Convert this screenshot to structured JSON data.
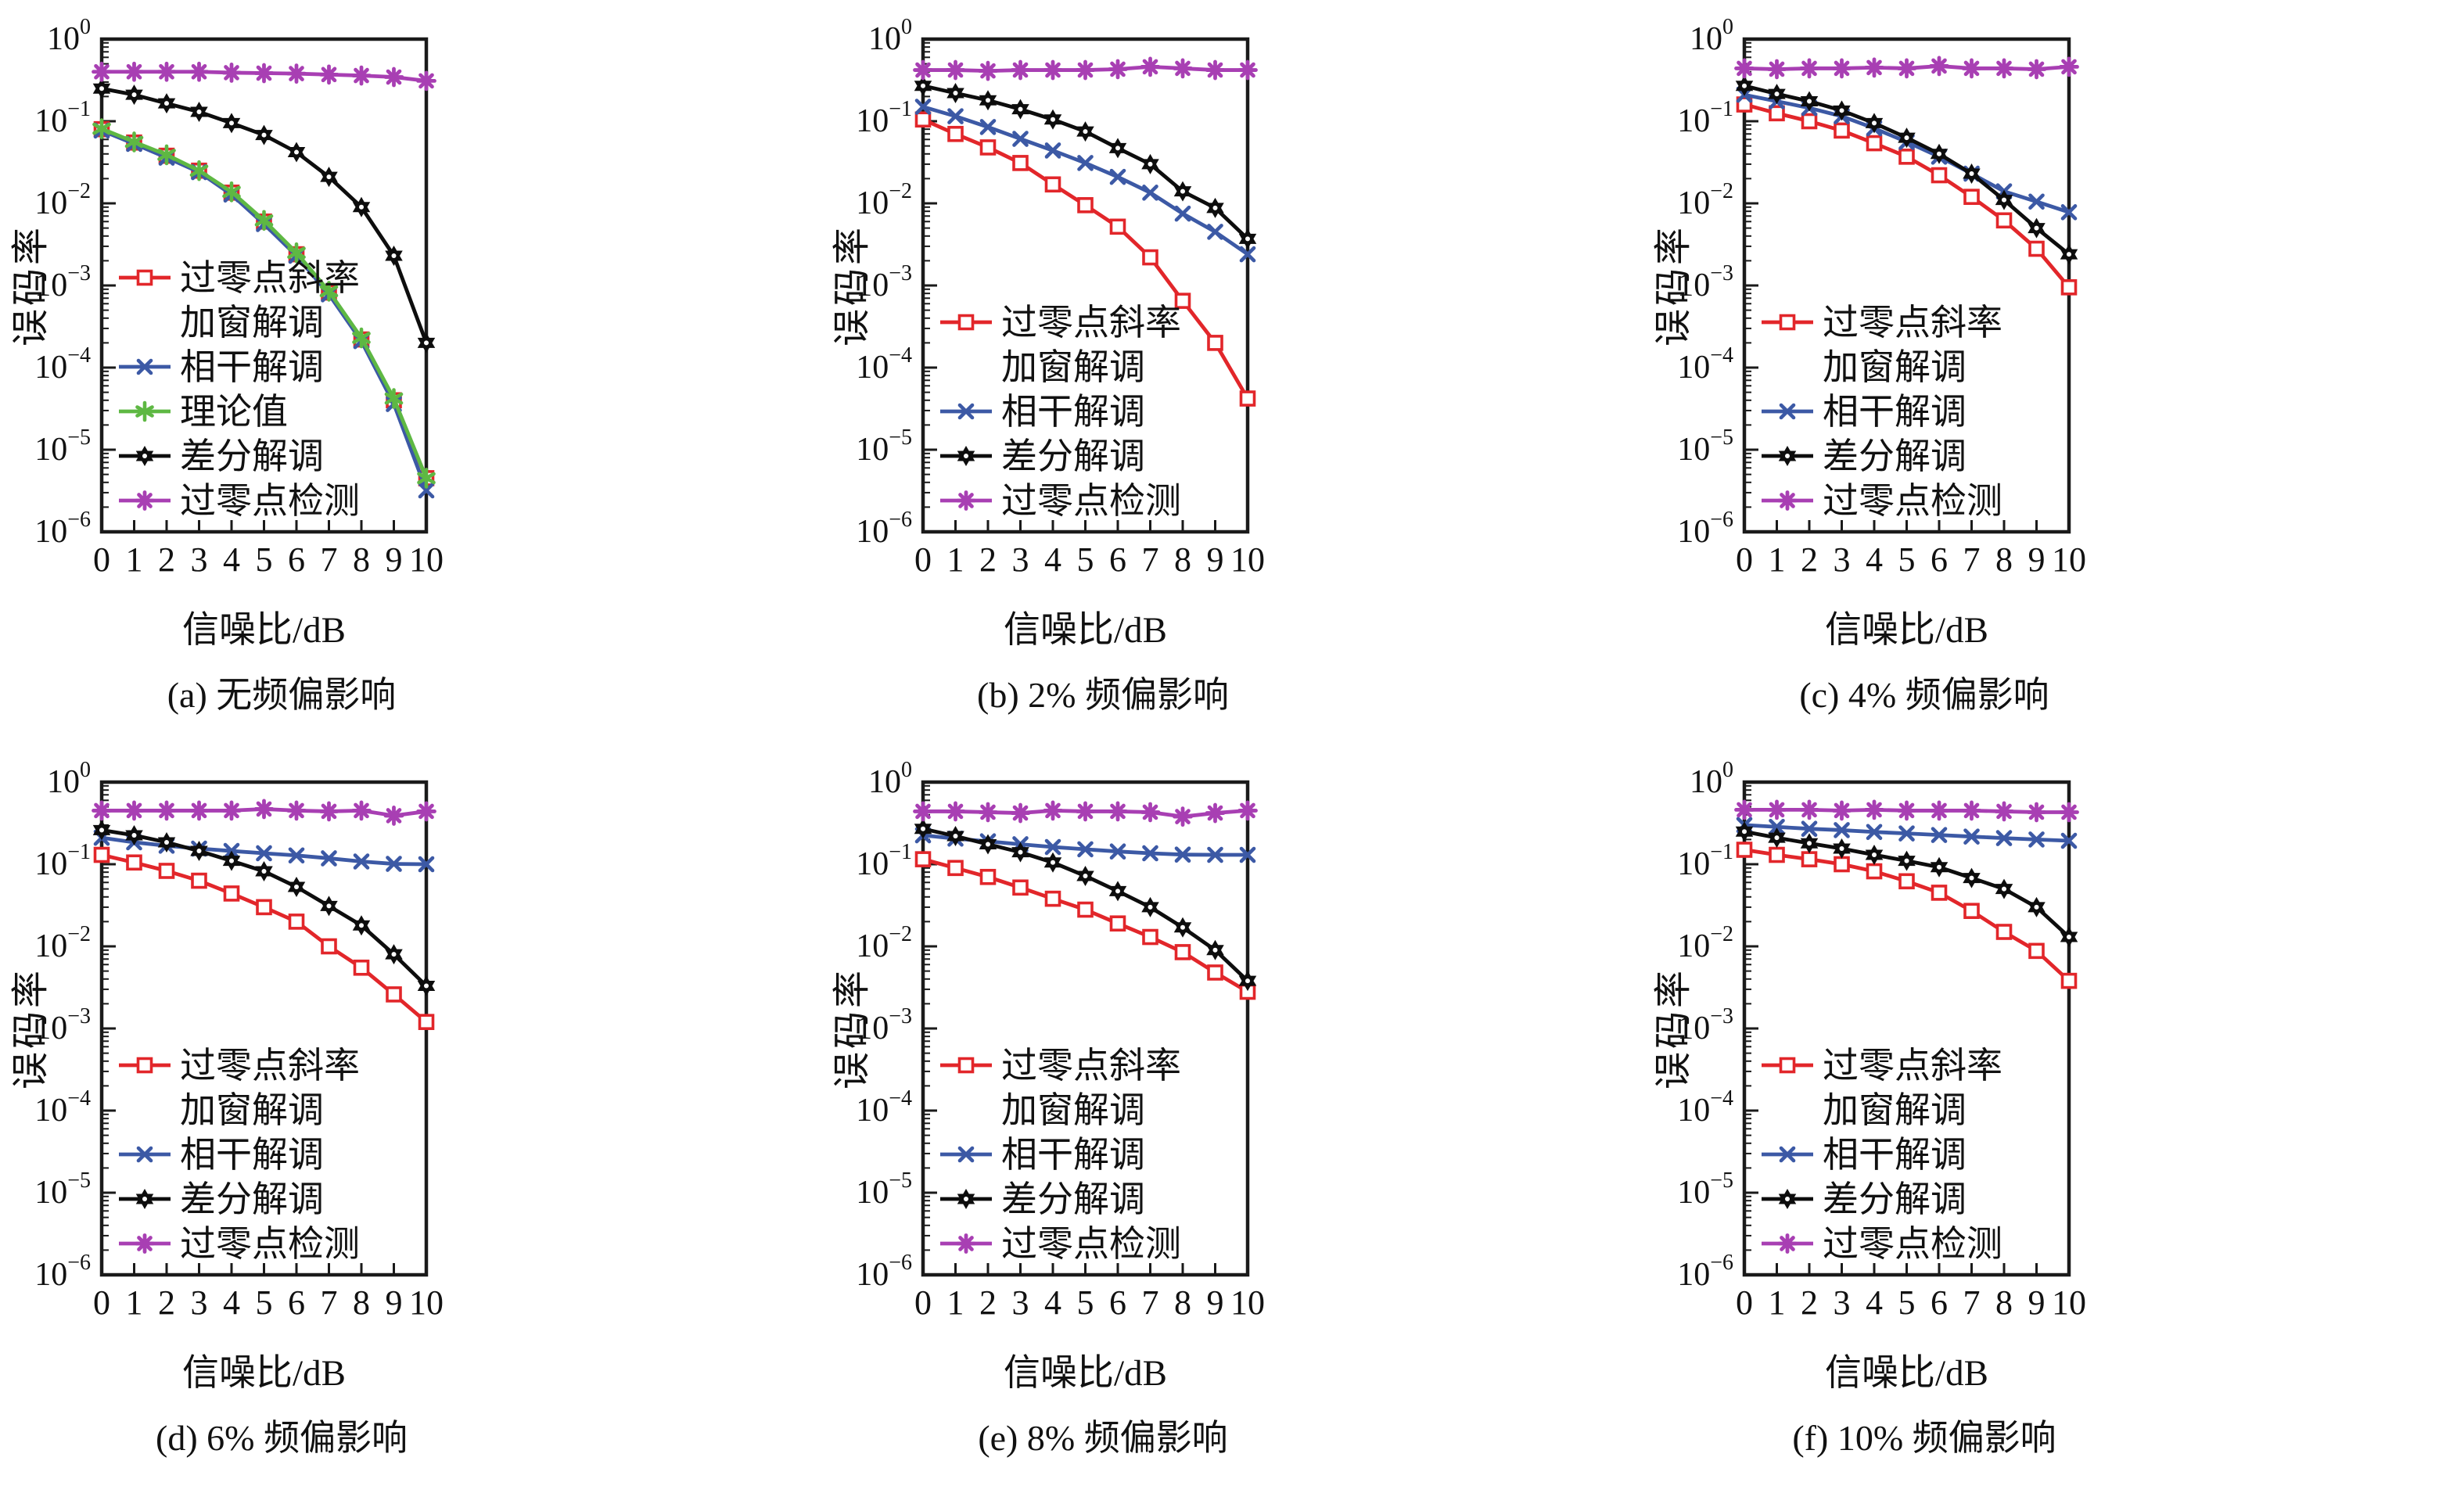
{
  "figure": {
    "xlabel": "信噪比/dB",
    "ylabel": "误码率"
  },
  "chart_data": [
    {
      "id": "a",
      "type": "line",
      "caption": "(a) 无频偏影响",
      "xlabel": "信噪比/dB",
      "ylabel": "误码率",
      "x": [
        0,
        1,
        2,
        3,
        4,
        5,
        6,
        7,
        8,
        9,
        10
      ],
      "xticks": [
        "0",
        "1",
        "2",
        "3",
        "4",
        "5",
        "6",
        "7",
        "8",
        "9",
        "10"
      ],
      "ytick_exponents": [
        0,
        -1,
        -2,
        -3,
        -4,
        -5,
        -6
      ],
      "xlim": [
        0,
        10
      ],
      "ylog_lim": [
        1,
        1e-06
      ],
      "grid": false,
      "legend_position": "lower-left-inside",
      "series": [
        {
          "name": "过零点斜率加窗解调",
          "legend_lines": [
            "过零点斜率",
            "加窗解调"
          ],
          "color": "#e2262a",
          "marker": "open-square",
          "values": [
            0.08,
            0.055,
            0.038,
            0.025,
            0.0135,
            0.006,
            0.0024,
            0.00082,
            0.00022,
            4e-05,
            4.5e-06
          ]
        },
        {
          "name": "相干解调",
          "legend_lines": [
            "相干解调"
          ],
          "color": "#3c59a5",
          "marker": "x-cross",
          "values": [
            0.077,
            0.053,
            0.036,
            0.024,
            0.0128,
            0.0056,
            0.0023,
            0.00078,
            0.00021,
            3.6e-05,
            3.2e-06
          ]
        },
        {
          "name": "理论值",
          "legend_lines": [
            "理论值"
          ],
          "color": "#5eb843",
          "marker": "asterisk-6",
          "values": [
            0.081,
            0.056,
            0.039,
            0.025,
            0.0138,
            0.0062,
            0.0025,
            0.00085,
            0.00023,
            4.2e-05,
            4.5e-06
          ]
        },
        {
          "name": "差分解调",
          "legend_lines": [
            "差分解调"
          ],
          "color": "#0d0d0d",
          "marker": "hexagram-star",
          "values": [
            0.25,
            0.21,
            0.165,
            0.13,
            0.095,
            0.068,
            0.042,
            0.021,
            0.009,
            0.0023,
            0.0002
          ]
        },
        {
          "name": "过零点检测",
          "legend_lines": [
            "过零点检测"
          ],
          "color": "#a83fb3",
          "marker": "asterisk-8",
          "values": [
            0.4,
            0.4,
            0.4,
            0.4,
            0.39,
            0.385,
            0.38,
            0.37,
            0.36,
            0.345,
            0.31
          ]
        }
      ]
    },
    {
      "id": "b",
      "type": "line",
      "caption": "(b) 2% 频偏影响",
      "xlabel": "信噪比/dB",
      "ylabel": "误码率",
      "x": [
        0,
        1,
        2,
        3,
        4,
        5,
        6,
        7,
        8,
        9,
        10
      ],
      "xticks": [
        "0",
        "1",
        "2",
        "3",
        "4",
        "5",
        "6",
        "7",
        "8",
        "9",
        "10"
      ],
      "ytick_exponents": [
        0,
        -1,
        -2,
        -3,
        -4,
        -5,
        -6
      ],
      "xlim": [
        0,
        10
      ],
      "ylog_lim": [
        1,
        1e-06
      ],
      "grid": false,
      "legend_position": "lower-left-inside",
      "series": [
        {
          "name": "过零点斜率加窗解调",
          "legend_lines": [
            "过零点斜率",
            "加窗解调"
          ],
          "color": "#e2262a",
          "marker": "open-square",
          "values": [
            0.105,
            0.07,
            0.048,
            0.031,
            0.017,
            0.0095,
            0.0052,
            0.0022,
            0.00065,
            0.0002,
            4.2e-05
          ]
        },
        {
          "name": "相干解调",
          "legend_lines": [
            "相干解调"
          ],
          "color": "#3c59a5",
          "marker": "x-cross",
          "values": [
            0.15,
            0.115,
            0.085,
            0.061,
            0.044,
            0.031,
            0.021,
            0.0135,
            0.0075,
            0.0045,
            0.0024
          ]
        },
        {
          "name": "差分解调",
          "legend_lines": [
            "差分解调"
          ],
          "color": "#0d0d0d",
          "marker": "hexagram-star",
          "values": [
            0.27,
            0.22,
            0.18,
            0.14,
            0.105,
            0.075,
            0.047,
            0.03,
            0.014,
            0.0088,
            0.0037
          ]
        },
        {
          "name": "过零点检测",
          "legend_lines": [
            "过零点检测"
          ],
          "color": "#a83fb3",
          "marker": "asterisk-8",
          "values": [
            0.42,
            0.42,
            0.41,
            0.42,
            0.42,
            0.42,
            0.43,
            0.46,
            0.44,
            0.42,
            0.42
          ]
        }
      ]
    },
    {
      "id": "c",
      "type": "line",
      "caption": "(c) 4% 频偏影响",
      "xlabel": "信噪比/dB",
      "ylabel": "误码率",
      "x": [
        0,
        1,
        2,
        3,
        4,
        5,
        6,
        7,
        8,
        9,
        10
      ],
      "xticks": [
        "0",
        "1",
        "2",
        "3",
        "4",
        "5",
        "6",
        "7",
        "8",
        "9",
        "10"
      ],
      "ytick_exponents": [
        0,
        -1,
        -2,
        -3,
        -4,
        -5,
        -6
      ],
      "xlim": [
        0,
        10
      ],
      "ylog_lim": [
        1,
        1e-06
      ],
      "grid": false,
      "legend_position": "lower-left-inside",
      "series": [
        {
          "name": "过零点斜率加窗解调",
          "legend_lines": [
            "过零点斜率",
            "加窗解调"
          ],
          "color": "#e2262a",
          "marker": "open-square",
          "values": [
            0.16,
            0.125,
            0.1,
            0.077,
            0.054,
            0.037,
            0.022,
            0.012,
            0.0062,
            0.0028,
            0.00095
          ]
        },
        {
          "name": "相干解调",
          "legend_lines": [
            "相干解调"
          ],
          "color": "#3c59a5",
          "marker": "x-cross",
          "values": [
            0.21,
            0.175,
            0.145,
            0.115,
            0.082,
            0.056,
            0.037,
            0.023,
            0.014,
            0.0105,
            0.0078
          ]
        },
        {
          "name": "差分解调",
          "legend_lines": [
            "差分解调"
          ],
          "color": "#0d0d0d",
          "marker": "hexagram-star",
          "values": [
            0.27,
            0.215,
            0.175,
            0.135,
            0.095,
            0.063,
            0.04,
            0.023,
            0.011,
            0.005,
            0.0024
          ]
        },
        {
          "name": "过零点检测",
          "legend_lines": [
            "过零点检测"
          ],
          "color": "#a83fb3",
          "marker": "asterisk-8",
          "values": [
            0.44,
            0.43,
            0.44,
            0.44,
            0.45,
            0.44,
            0.47,
            0.44,
            0.44,
            0.43,
            0.46
          ]
        }
      ]
    },
    {
      "id": "d",
      "type": "line",
      "caption": "(d) 6% 频偏影响",
      "xlabel": "信噪比/dB",
      "ylabel": "误码率",
      "x": [
        0,
        1,
        2,
        3,
        4,
        5,
        6,
        7,
        8,
        9,
        10
      ],
      "xticks": [
        "0",
        "1",
        "2",
        "3",
        "4",
        "5",
        "6",
        "7",
        "8",
        "9",
        "10"
      ],
      "ytick_exponents": [
        0,
        -1,
        -2,
        -3,
        -4,
        -5,
        -6
      ],
      "xlim": [
        0,
        10
      ],
      "ylog_lim": [
        1,
        1e-06
      ],
      "grid": false,
      "legend_position": "lower-left-inside",
      "series": [
        {
          "name": "过零点斜率加窗解调",
          "legend_lines": [
            "过零点斜率",
            "加窗解调"
          ],
          "color": "#e2262a",
          "marker": "open-square",
          "values": [
            0.13,
            0.105,
            0.083,
            0.063,
            0.044,
            0.03,
            0.02,
            0.01,
            0.0055,
            0.0026,
            0.0012
          ]
        },
        {
          "name": "相干解调",
          "legend_lines": [
            "相干解调"
          ],
          "color": "#3c59a5",
          "marker": "x-cross",
          "values": [
            0.21,
            0.185,
            0.168,
            0.155,
            0.145,
            0.136,
            0.128,
            0.118,
            0.108,
            0.101,
            0.1
          ]
        },
        {
          "name": "差分解调",
          "legend_lines": [
            "差分解调"
          ],
          "color": "#0d0d0d",
          "marker": "hexagram-star",
          "values": [
            0.26,
            0.225,
            0.185,
            0.145,
            0.11,
            0.082,
            0.053,
            0.031,
            0.018,
            0.008,
            0.0033
          ]
        },
        {
          "name": "过零点检测",
          "legend_lines": [
            "过零点检测"
          ],
          "color": "#a83fb3",
          "marker": "asterisk-8",
          "values": [
            0.45,
            0.45,
            0.45,
            0.45,
            0.45,
            0.47,
            0.45,
            0.44,
            0.45,
            0.39,
            0.44
          ]
        }
      ]
    },
    {
      "id": "e",
      "type": "line",
      "caption": "(e) 8% 频偏影响",
      "xlabel": "信噪比/dB",
      "ylabel": "误码率",
      "x": [
        0,
        1,
        2,
        3,
        4,
        5,
        6,
        7,
        8,
        9,
        10
      ],
      "xticks": [
        "0",
        "1",
        "2",
        "3",
        "4",
        "5",
        "6",
        "7",
        "8",
        "9",
        "10"
      ],
      "ytick_exponents": [
        0,
        -1,
        -2,
        -3,
        -4,
        -5,
        -6
      ],
      "xlim": [
        0,
        10
      ],
      "ylog_lim": [
        1,
        1e-06
      ],
      "grid": false,
      "legend_position": "lower-left-inside",
      "series": [
        {
          "name": "过零点斜率加窗解调",
          "legend_lines": [
            "过零点斜率",
            "加窗解调"
          ],
          "color": "#e2262a",
          "marker": "open-square",
          "values": [
            0.115,
            0.09,
            0.07,
            0.052,
            0.038,
            0.028,
            0.019,
            0.013,
            0.0085,
            0.0048,
            0.0028
          ]
        },
        {
          "name": "相干解调",
          "legend_lines": [
            "相干解调"
          ],
          "color": "#3c59a5",
          "marker": "x-cross",
          "values": [
            0.225,
            0.205,
            0.19,
            0.175,
            0.162,
            0.152,
            0.143,
            0.136,
            0.131,
            0.13,
            0.13
          ]
        },
        {
          "name": "差分解调",
          "legend_lines": [
            "差分解调"
          ],
          "color": "#0d0d0d",
          "marker": "hexagram-star",
          "values": [
            0.27,
            0.22,
            0.175,
            0.14,
            0.105,
            0.072,
            0.047,
            0.03,
            0.017,
            0.009,
            0.0038
          ]
        },
        {
          "name": "过零点检测",
          "legend_lines": [
            "过零点检测"
          ],
          "color": "#a83fb3",
          "marker": "asterisk-8",
          "values": [
            0.44,
            0.44,
            0.43,
            0.42,
            0.45,
            0.44,
            0.44,
            0.43,
            0.38,
            0.42,
            0.45
          ]
        }
      ]
    },
    {
      "id": "f",
      "type": "line",
      "caption": "(f) 10% 频偏影响",
      "xlabel": "信噪比/dB",
      "ylabel": "误码率",
      "x": [
        0,
        1,
        2,
        3,
        4,
        5,
        6,
        7,
        8,
        9,
        10
      ],
      "xticks": [
        "0",
        "1",
        "2",
        "3",
        "4",
        "5",
        "6",
        "7",
        "8",
        "9",
        "10"
      ],
      "ytick_exponents": [
        0,
        -1,
        -2,
        -3,
        -4,
        -5,
        -6
      ],
      "xlim": [
        0,
        10
      ],
      "ylog_lim": [
        1,
        1e-06
      ],
      "grid": false,
      "legend_position": "lower-left-inside",
      "series": [
        {
          "name": "过零点斜率加窗解调",
          "legend_lines": [
            "过零点斜率",
            "加窗解调"
          ],
          "color": "#e2262a",
          "marker": "open-square",
          "values": [
            0.15,
            0.13,
            0.115,
            0.1,
            0.082,
            0.062,
            0.045,
            0.027,
            0.015,
            0.0088,
            0.0038
          ]
        },
        {
          "name": "相干解调",
          "legend_lines": [
            "相干解调"
          ],
          "color": "#3c59a5",
          "marker": "x-cross",
          "values": [
            0.3,
            0.285,
            0.27,
            0.26,
            0.247,
            0.237,
            0.227,
            0.217,
            0.208,
            0.2,
            0.193
          ]
        },
        {
          "name": "差分解调",
          "legend_lines": [
            "差分解调"
          ],
          "color": "#0d0d0d",
          "marker": "hexagram-star",
          "values": [
            0.25,
            0.21,
            0.18,
            0.155,
            0.13,
            0.11,
            0.092,
            0.068,
            0.05,
            0.03,
            0.013
          ]
        },
        {
          "name": "过零点检测",
          "legend_lines": [
            "过零点检测"
          ],
          "color": "#a83fb3",
          "marker": "asterisk-8",
          "values": [
            0.46,
            0.46,
            0.46,
            0.45,
            0.46,
            0.45,
            0.45,
            0.45,
            0.44,
            0.43,
            0.43
          ]
        }
      ]
    }
  ]
}
